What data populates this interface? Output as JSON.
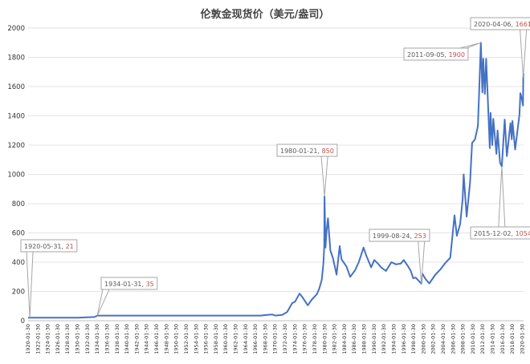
{
  "chart_data": {
    "type": "line",
    "title": "伦敦金现货价（美元/盎司）",
    "xlabel": "",
    "ylabel": "",
    "ylim": [
      0,
      2000
    ],
    "yticks": [
      "0",
      "200",
      "400",
      "600",
      "800",
      "1000",
      "1200",
      "1400",
      "1600",
      "1800",
      "2000"
    ],
    "xlim": [
      "1920-01-30",
      "2020-04-30"
    ],
    "xticks": [
      "1920-01-30",
      "1922-01-30",
      "1924-01-30",
      "1926-01-30",
      "1928-01-30",
      "1930-01-30",
      "1932-01-30",
      "1934-01-30",
      "1936-01-30",
      "1938-01-30",
      "1940-01-30",
      "1942-01-30",
      "1944-01-30",
      "1946-01-30",
      "1948-01-30",
      "1950-01-30",
      "1952-01-30",
      "1954-01-30",
      "1956-01-30",
      "1958-01-30",
      "1960-01-30",
      "1962-01-30",
      "1964-01-30",
      "1966-01-30",
      "1968-01-30",
      "1970-01-30",
      "1972-01-30",
      "1974-01-30",
      "1976-01-30",
      "1978-01-30",
      "1980-01-30",
      "1982-01-30",
      "1984-01-30",
      "1986-01-30",
      "1988-01-30",
      "1990-01-30",
      "1992-01-30",
      "1994-01-30",
      "1996-01-30",
      "1998-01-30",
      "2000-01-30",
      "2002-01-30",
      "2004-01-30",
      "2006-01-30",
      "2008-01-30",
      "2010-01-30",
      "2012-01-30",
      "2014-01-30",
      "2016-01-30",
      "2018-01-30",
      "2020-01-30"
    ],
    "grid": true,
    "line_color": "#4472c4",
    "series": [
      {
        "points": [
          [
            "1920-01-30",
            21
          ],
          [
            "1920-05-31",
            21
          ],
          [
            "1925-01-30",
            20.7
          ],
          [
            "1930-01-30",
            20.7
          ],
          [
            "1933-06-30",
            25
          ],
          [
            "1934-01-31",
            35
          ],
          [
            "1940-01-30",
            35
          ],
          [
            "1950-01-30",
            35
          ],
          [
            "1960-01-30",
            35
          ],
          [
            "1967-01-30",
            35
          ],
          [
            "1968-06-30",
            40
          ],
          [
            "1969-06-30",
            42
          ],
          [
            "1970-01-30",
            35
          ],
          [
            "1971-06-30",
            40
          ],
          [
            "1972-06-30",
            60
          ],
          [
            "1973-06-30",
            120
          ],
          [
            "1974-01-30",
            130
          ],
          [
            "1974-12-30",
            185
          ],
          [
            "1975-06-30",
            165
          ],
          [
            "1976-08-30",
            105
          ],
          [
            "1977-06-30",
            145
          ],
          [
            "1978-06-30",
            180
          ],
          [
            "1978-12-30",
            220
          ],
          [
            "1979-06-30",
            280
          ],
          [
            "1979-10-30",
            390
          ],
          [
            "1979-12-30",
            512
          ],
          [
            "1980-01-21",
            850
          ],
          [
            "1980-03-30",
            500
          ],
          [
            "1980-06-30",
            620
          ],
          [
            "1980-09-30",
            700
          ],
          [
            "1981-03-30",
            480
          ],
          [
            "1981-09-30",
            430
          ],
          [
            "1982-06-30",
            315
          ],
          [
            "1983-02-15",
            510
          ],
          [
            "1983-06-30",
            420
          ],
          [
            "1984-06-30",
            370
          ],
          [
            "1985-03-30",
            300
          ],
          [
            "1986-03-30",
            345
          ],
          [
            "1986-12-30",
            400
          ],
          [
            "1987-12-14",
            500
          ],
          [
            "1988-06-30",
            445
          ],
          [
            "1989-06-30",
            365
          ],
          [
            "1990-02-15",
            415
          ],
          [
            "1990-12-30",
            385
          ],
          [
            "1991-06-30",
            365
          ],
          [
            "1992-06-30",
            340
          ],
          [
            "1993-07-30",
            400
          ],
          [
            "1994-06-30",
            385
          ],
          [
            "1995-06-30",
            390
          ],
          [
            "1996-02-01",
            415
          ],
          [
            "1996-12-30",
            370
          ],
          [
            "1997-06-30",
            340
          ],
          [
            "1997-12-30",
            290
          ],
          [
            "1998-06-30",
            295
          ],
          [
            "1999-08-24",
            253
          ],
          [
            "1999-10-10",
            325
          ],
          [
            "2000-06-30",
            285
          ],
          [
            "2001-04-01",
            255
          ],
          [
            "2002-06-30",
            315
          ],
          [
            "2003-06-30",
            350
          ],
          [
            "2004-06-30",
            395
          ],
          [
            "2005-06-30",
            430
          ],
          [
            "2006-05-12",
            720
          ],
          [
            "2006-10-30",
            580
          ],
          [
            "2007-06-30",
            660
          ],
          [
            "2007-12-30",
            830
          ],
          [
            "2008-03-17",
            1000
          ],
          [
            "2008-10-24",
            712
          ],
          [
            "2009-06-30",
            940
          ],
          [
            "2009-12-02",
            1215
          ],
          [
            "2010-06-30",
            1240
          ],
          [
            "2011-01-30",
            1330
          ],
          [
            "2011-05-01",
            1550
          ],
          [
            "2011-09-05",
            1900
          ],
          [
            "2011-12-30",
            1560
          ],
          [
            "2012-03-01",
            1790
          ],
          [
            "2012-06-30",
            1550
          ],
          [
            "2012-10-05",
            1790
          ],
          [
            "2013-04-15",
            1350
          ],
          [
            "2013-06-28",
            1180
          ],
          [
            "2013-08-28",
            1420
          ],
          [
            "2013-12-30",
            1200
          ],
          [
            "2014-03-15",
            1380
          ],
          [
            "2014-11-05",
            1140
          ],
          [
            "2015-01-22",
            1300
          ],
          [
            "2015-07-30",
            1080
          ],
          [
            "2015-12-02",
            1054
          ],
          [
            "2016-07-06",
            1375
          ],
          [
            "2016-12-15",
            1125
          ],
          [
            "2017-09-08",
            1350
          ],
          [
            "2017-12-12",
            1240
          ],
          [
            "2018-01-25",
            1365
          ],
          [
            "2018-08-16",
            1170
          ],
          [
            "2019-06-30",
            1410
          ],
          [
            "2019-09-04",
            1555
          ],
          [
            "2019-12-30",
            1515
          ],
          [
            "2020-03-19",
            1470
          ],
          [
            "2020-04-06",
            1661
          ],
          [
            "2020-04-30",
            1690
          ]
        ]
      }
    ],
    "annotations": [
      {
        "date": "1920-05-31",
        "value": "21",
        "label": "1920-05-31, "
      },
      {
        "date": "1934-01-31",
        "value": "35",
        "label": "1934-01-31, "
      },
      {
        "date": "1980-01-21",
        "value": "850",
        "label": "1980-01-21, "
      },
      {
        "date": "1999-08-24",
        "value": "253",
        "label": "1999-08-24, "
      },
      {
        "date": "2011-09-05",
        "value": "1900",
        "label": "2011-09-05, "
      },
      {
        "date": "2015-12-02",
        "value": "1054",
        "label": "2015-12-02, "
      },
      {
        "date": "2020-04-06",
        "value": "1661",
        "label": "2020-04-06, "
      }
    ],
    "annotation_colors": {
      "date_text": "#595959",
      "value_text": "#c0504d",
      "border": "#a6a6a6"
    }
  }
}
